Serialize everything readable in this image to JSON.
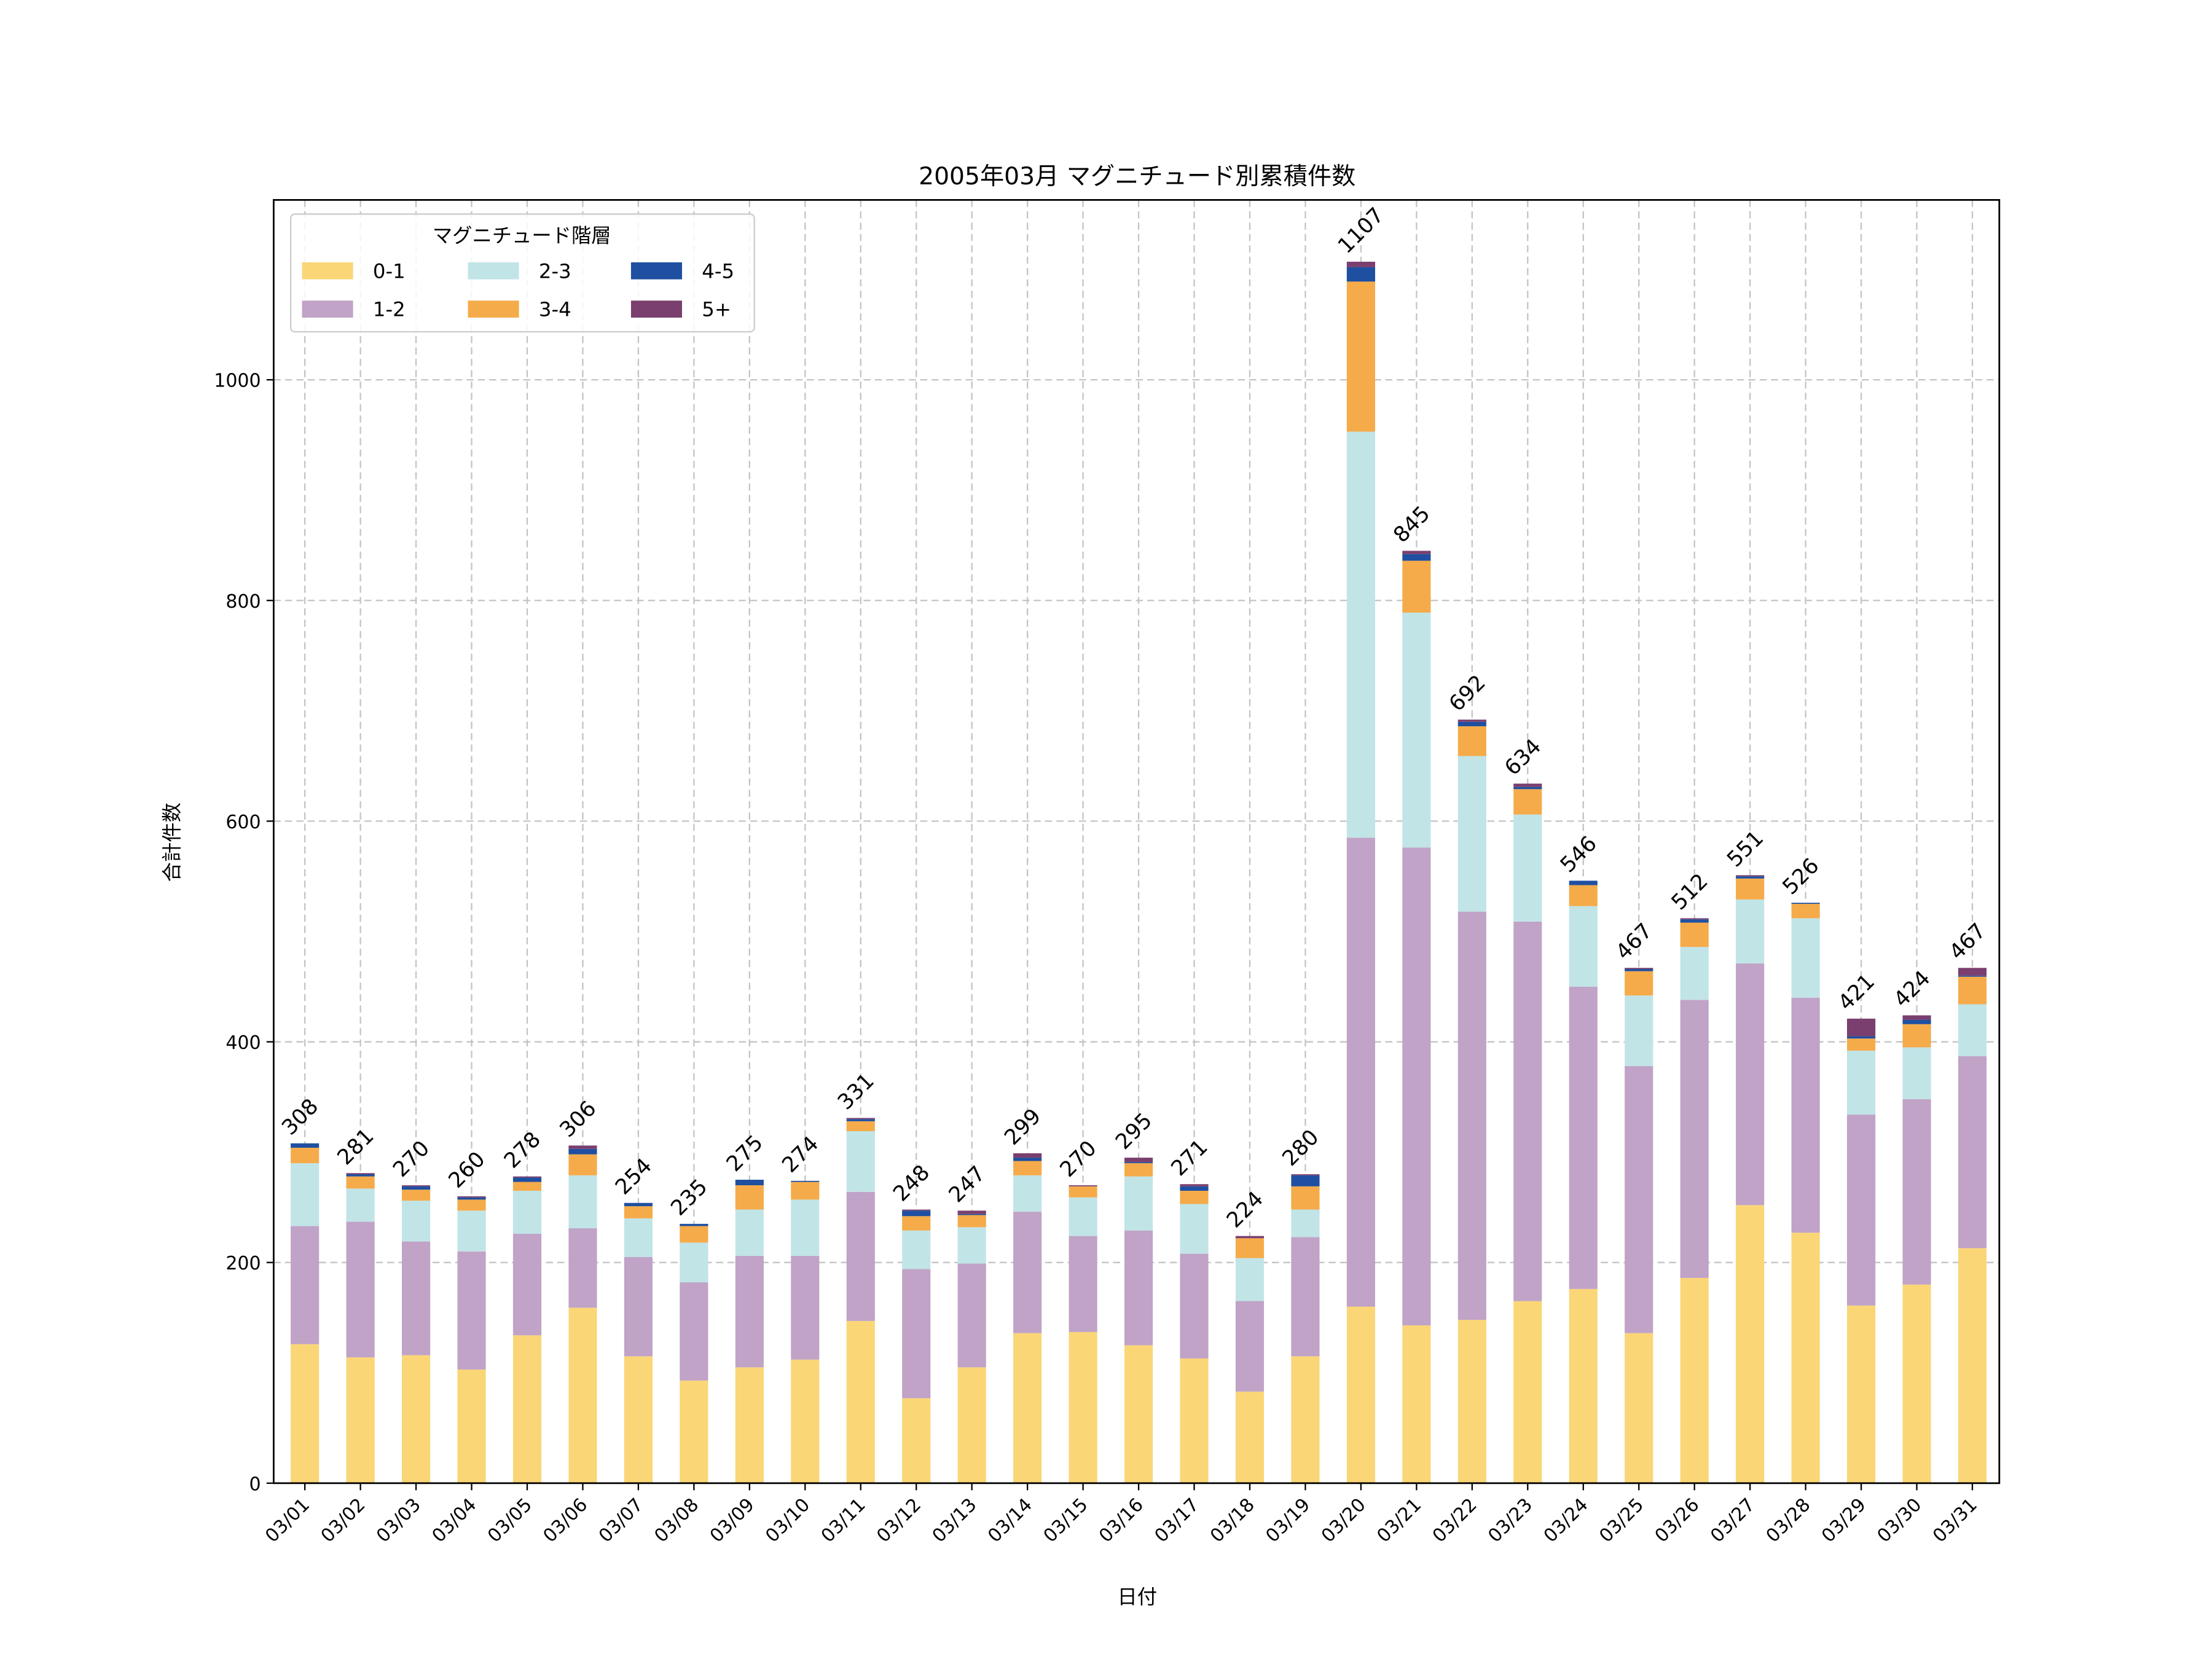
{
  "chart_data": {
    "type": "bar",
    "stacked": true,
    "title": "2005年03月 マグニチュード別累積件数",
    "xlabel": "日付",
    "ylabel": "合計件数",
    "ylim": [
      0,
      1163
    ],
    "yticks": [
      0,
      200,
      400,
      600,
      800,
      1000
    ],
    "grid": true,
    "legend": {
      "title": "マグニチュード階層",
      "placement": "top-left",
      "columns": 3
    },
    "categories": [
      "03/01",
      "03/02",
      "03/03",
      "03/04",
      "03/05",
      "03/06",
      "03/07",
      "03/08",
      "03/09",
      "03/10",
      "03/11",
      "03/12",
      "03/13",
      "03/14",
      "03/15",
      "03/16",
      "03/17",
      "03/18",
      "03/19",
      "03/20",
      "03/21",
      "03/22",
      "03/23",
      "03/24",
      "03/25",
      "03/26",
      "03/27",
      "03/28",
      "03/29",
      "03/30",
      "03/31"
    ],
    "series": [
      {
        "name": "0-1",
        "color": "#fad677",
        "values": [
          126,
          114,
          116,
          103,
          134,
          159,
          115,
          93,
          105,
          112,
          147,
          77,
          105,
          136,
          137,
          125,
          113,
          83,
          115,
          160,
          143,
          148,
          165,
          176,
          136,
          186,
          252,
          227,
          161,
          180,
          213
        ]
      },
      {
        "name": "1-2",
        "color": "#c0a3c7",
        "values": [
          107,
          123,
          103,
          107,
          92,
          72,
          90,
          89,
          101,
          94,
          117,
          117,
          94,
          110,
          87,
          104,
          95,
          82,
          108,
          425,
          433,
          370,
          344,
          274,
          242,
          252,
          219,
          213,
          173,
          168,
          174
        ]
      },
      {
        "name": "2-3",
        "color": "#c1e4e7",
        "values": [
          57,
          30,
          37,
          37,
          39,
          48,
          35,
          36,
          42,
          51,
          55,
          35,
          33,
          33,
          35,
          49,
          45,
          39,
          25,
          368,
          213,
          141,
          97,
          73,
          64,
          48,
          58,
          72,
          58,
          47,
          47
        ]
      },
      {
        "name": "3-4",
        "color": "#f5ab4a",
        "values": [
          14,
          11,
          10,
          10,
          8,
          19,
          11,
          15,
          22,
          16,
          9,
          13,
          11,
          13,
          10,
          12,
          12,
          18,
          21,
          136,
          47,
          27,
          23,
          19,
          22,
          22,
          19,
          13,
          11,
          21,
          25
        ]
      },
      {
        "name": "4-5",
        "color": "#1f4fa0",
        "values": [
          4,
          2,
          3,
          2,
          4,
          5,
          3,
          2,
          5,
          1,
          2,
          5,
          1,
          3,
          0,
          1,
          4,
          0,
          10,
          13,
          6,
          4,
          2,
          4,
          2,
          3,
          2,
          1,
          2,
          4,
          1
        ]
      },
      {
        "name": "5+",
        "color": "#7a3f6e",
        "values": [
          0,
          1,
          1,
          1,
          1,
          3,
          0,
          0,
          0,
          0,
          1,
          1,
          3,
          4,
          1,
          4,
          2,
          2,
          1,
          5,
          3,
          2,
          3,
          0,
          1,
          1,
          1,
          0,
          16,
          4,
          7
        ]
      }
    ],
    "totals": [
      308,
      281,
      270,
      260,
      278,
      306,
      254,
      235,
      275,
      274,
      331,
      248,
      247,
      299,
      270,
      295,
      271,
      224,
      280,
      1107,
      845,
      692,
      634,
      546,
      467,
      512,
      551,
      526,
      421,
      424,
      467
    ]
  }
}
